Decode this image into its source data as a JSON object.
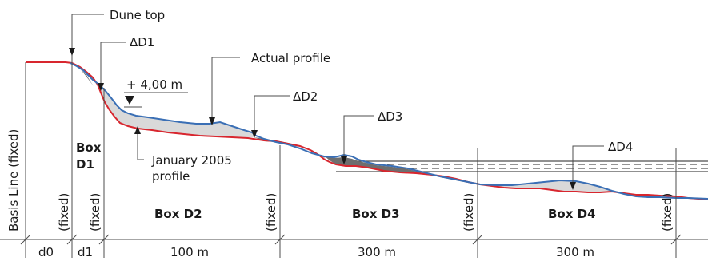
{
  "labels": {
    "dune_top": "Dune top",
    "delta_d1": "ΔD1",
    "actual_profile": "Actual profile",
    "water_level": "+ 4,00 m",
    "delta_d2": "ΔD2",
    "delta_d3": "ΔD3",
    "delta_d4": "ΔD4",
    "jan_profile_1": "January 2005",
    "jan_profile_2": "profile",
    "basis_line": "Basis Line (fixed)",
    "fixed": "(fixed)",
    "box_d1_a": "Box",
    "box_d1_b": "D1",
    "box_d2": "Box D2",
    "box_d3": "Box D3",
    "box_d4": "Box D4"
  },
  "dimensions": {
    "d0": "d0",
    "d1": "d1",
    "box_d2_width": "100 m",
    "box_d3_width": "300 m",
    "box_d4_width": "300 m"
  },
  "colors": {
    "actual_profile": "#3a6fb5",
    "january_profile": "#d8262e",
    "gain_fill": "#d9d9d9",
    "loss_fill": "#6e6e6e",
    "lines": "#4d4d4d"
  }
}
